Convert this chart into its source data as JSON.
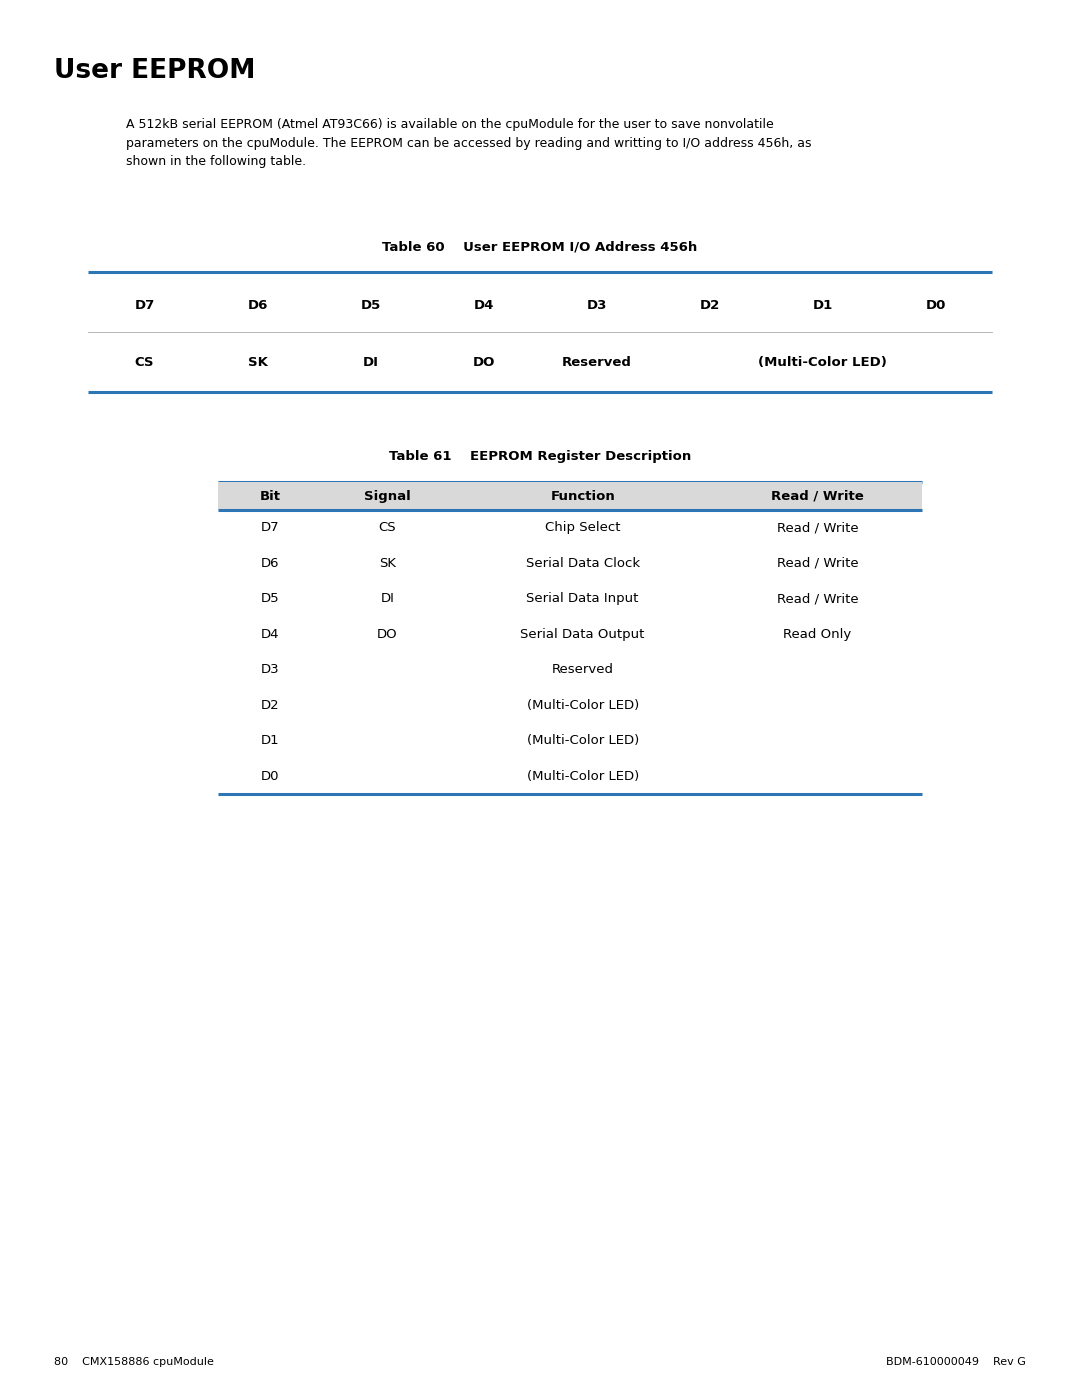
{
  "page_width": 10.8,
  "page_height": 13.97,
  "bg_color": "#ffffff",
  "title": "User EEPROM",
  "body_text_line1": "A 512kB serial EEPROM (Atmel AT93C66) is available on the cpuModule for the user to save nonvolatile",
  "body_text_line2": "parameters on the cpuModule. The EEPROM can be accessed by reading and writting to I/O address 456h, as",
  "body_text_line3": "shown in the following table.",
  "table1_title": "Table 60    User EEPROM I/O Address 456h",
  "table1_header": [
    "D7",
    "D6",
    "D5",
    "D4",
    "D3",
    "D2",
    "D1",
    "D0"
  ],
  "table1_row_left": [
    "CS",
    "SK",
    "DI",
    "DO",
    "Reserved"
  ],
  "table1_row_right": "(Multi-Color LED)",
  "table2_title": "Table 61    EEPROM Register Description",
  "table2_headers": [
    "Bit",
    "Signal",
    "Function",
    "Read / Write"
  ],
  "table2_rows": [
    [
      "D7",
      "CS",
      "Chip Select",
      "Read / Write"
    ],
    [
      "D6",
      "SK",
      "Serial Data Clock",
      "Read / Write"
    ],
    [
      "D5",
      "DI",
      "Serial Data Input",
      "Read / Write"
    ],
    [
      "D4",
      "DO",
      "Serial Data Output",
      "Read Only"
    ],
    [
      "D3",
      "",
      "Reserved",
      ""
    ],
    [
      "D2",
      "",
      "(Multi-Color LED)",
      ""
    ],
    [
      "D1",
      "",
      "(Multi-Color LED)",
      ""
    ],
    [
      "D0",
      "",
      "(Multi-Color LED)",
      ""
    ]
  ],
  "footer_left": "80    CMX158886 cpuModule",
  "footer_right": "BDM-610000049    Rev G",
  "line_color": "#2e75b6",
  "header_bg": "#d9d9d9"
}
